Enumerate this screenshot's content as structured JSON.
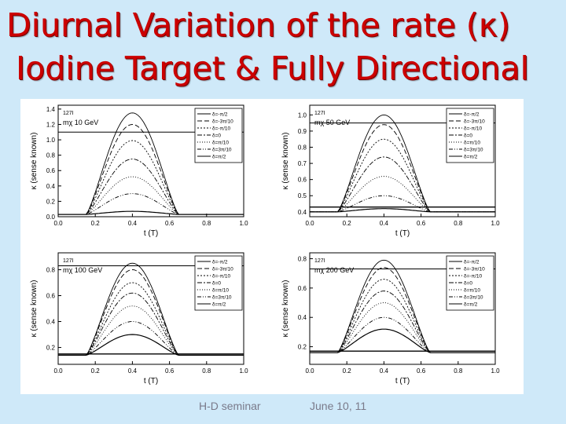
{
  "slide": {
    "title_line1": "Diurnal Variation of the rate (κ)",
    "title_line2": "Iodine Target & Fully Directional",
    "title_color": "#cc0000",
    "background": "#cfe9f9"
  },
  "footer": {
    "left": "H-D seminar",
    "right": "June 10, 11"
  },
  "chart_data": [
    {
      "type": "line",
      "target": "127I",
      "mass_label": "mχ 10 GeV",
      "xlabel": "t (T)",
      "ylabel": "κ (sense known)",
      "xlim": [
        0,
        1
      ],
      "ylim": [
        0,
        1.45
      ],
      "xticks": [
        "0.0",
        "0.2",
        "0.4",
        "0.6",
        "0.8",
        "1.0"
      ],
      "yticks": [
        0.0,
        0.2,
        0.4,
        0.6,
        0.8,
        1.0,
        1.2,
        1.4
      ],
      "ytick_labels": [
        "0.0",
        "0.2",
        "0.4",
        "0.6",
        "0.8",
        "1.0",
        "1.2",
        "1.4"
      ],
      "reference_line": 1.1,
      "legend": [
        "δ=-π/2",
        "δ=-3π/10",
        "δ=-π/10",
        "δ=0",
        "δ=π/10",
        "δ=3π/10",
        "δ=π/2"
      ],
      "series": [
        {
          "peak": 1.35,
          "base": 0.03,
          "dash": ""
        },
        {
          "peak": 1.2,
          "base": 0.03,
          "dash": "6,3"
        },
        {
          "peak": 0.99,
          "base": 0.03,
          "dash": "2,2"
        },
        {
          "peak": 0.75,
          "base": 0.03,
          "dash": "6,2,2,2"
        },
        {
          "peak": 0.52,
          "base": 0.03,
          "dash": "1,2"
        },
        {
          "peak": 0.3,
          "base": 0.03,
          "dash": "5,2,1,2,1,2"
        },
        {
          "peak": 0.07,
          "base": 0.03,
          "dash": ""
        }
      ]
    },
    {
      "type": "line",
      "target": "127I",
      "mass_label": "mχ 50 GeV",
      "xlabel": "t (T)",
      "ylabel": "κ (sense known)",
      "xlim": [
        0,
        1
      ],
      "ylim": [
        0.37,
        1.06
      ],
      "xticks": [
        "0.0",
        "0.2",
        "0.4",
        "0.6",
        "0.8",
        "1.0"
      ],
      "yticks": [
        0.4,
        0.5,
        0.6,
        0.7,
        0.8,
        0.9,
        1.0
      ],
      "ytick_labels": [
        "0.4",
        "0.5",
        "0.6",
        "0.7",
        "0.8",
        "0.9",
        "1.0"
      ],
      "reference_line": 0.95,
      "bottom_line": 0.43,
      "legend": [
        "δ=-π/2",
        "δ=-3π/10",
        "δ=-π/10",
        "δ=0",
        "δ=π/10",
        "δ=3π/10",
        "δ=π/2"
      ],
      "series": [
        {
          "peak": 1.0,
          "base": 0.4,
          "dash": ""
        },
        {
          "peak": 0.94,
          "base": 0.4,
          "dash": "6,3"
        },
        {
          "peak": 0.85,
          "base": 0.4,
          "dash": "2,2"
        },
        {
          "peak": 0.74,
          "base": 0.4,
          "dash": "6,2,2,2"
        },
        {
          "peak": 0.62,
          "base": 0.4,
          "dash": "1,2"
        },
        {
          "peak": 0.5,
          "base": 0.4,
          "dash": "5,2,1,2,1,2"
        },
        {
          "peak": 0.42,
          "base": 0.4,
          "dash": ""
        }
      ]
    },
    {
      "type": "line",
      "target": "127I",
      "mass_label": "mχ 100 GeV",
      "xlabel": "t (T)",
      "ylabel": "κ (sense known)",
      "xlim": [
        0,
        1
      ],
      "ylim": [
        0.07,
        0.93
      ],
      "xticks": [
        "0.0",
        "0.2",
        "0.4",
        "0.6",
        "0.8",
        "1.0"
      ],
      "yticks": [
        0.2,
        0.4,
        0.6,
        0.8
      ],
      "ytick_labels": [
        "0.2",
        "0.4",
        "0.6",
        "0.8"
      ],
      "reference_line": 0.83,
      "bottom_line": 0.15,
      "legend": [
        "δ=-π/2",
        "δ=-3π/10",
        "δ=-π/10",
        "δ=0",
        "δ=π/10",
        "δ=3π/10",
        "δ=π/2"
      ],
      "series": [
        {
          "peak": 0.85,
          "base": 0.14,
          "dash": ""
        },
        {
          "peak": 0.8,
          "base": 0.14,
          "dash": "6,3"
        },
        {
          "peak": 0.7,
          "base": 0.14,
          "dash": "2,2"
        },
        {
          "peak": 0.62,
          "base": 0.14,
          "dash": "6,2,2,2"
        },
        {
          "peak": 0.52,
          "base": 0.14,
          "dash": "1,2"
        },
        {
          "peak": 0.4,
          "base": 0.14,
          "dash": "5,2,1,2,1,2"
        },
        {
          "peak": 0.3,
          "base": 0.14,
          "dash": ""
        }
      ]
    },
    {
      "type": "line",
      "target": "127I",
      "mass_label": "mχ 200 GeV",
      "xlabel": "t (T)",
      "ylabel": "κ (sense known)",
      "xlim": [
        0,
        1
      ],
      "ylim": [
        0.08,
        0.84
      ],
      "xticks": [
        "0.0",
        "0.2",
        "0.4",
        "0.6",
        "0.8",
        "1.0"
      ],
      "yticks": [
        0.2,
        0.4,
        0.6,
        0.8
      ],
      "ytick_labels": [
        "0.2",
        "0.4",
        "0.6",
        "0.8"
      ],
      "reference_line": 0.73,
      "bottom_line": 0.17,
      "legend": [
        "δ=-π/2",
        "δ=-3π/10",
        "δ=-π/10",
        "δ=0",
        "δ=π/10",
        "δ=3π/10",
        "δ=π/2"
      ],
      "series": [
        {
          "peak": 0.79,
          "base": 0.16,
          "dash": ""
        },
        {
          "peak": 0.74,
          "base": 0.16,
          "dash": "6,3"
        },
        {
          "peak": 0.66,
          "base": 0.16,
          "dash": "2,2"
        },
        {
          "peak": 0.58,
          "base": 0.16,
          "dash": "6,2,2,2"
        },
        {
          "peak": 0.5,
          "base": 0.16,
          "dash": "1,2"
        },
        {
          "peak": 0.4,
          "base": 0.16,
          "dash": "5,2,1,2,1,2"
        },
        {
          "peak": 0.32,
          "base": 0.16,
          "dash": ""
        }
      ]
    }
  ]
}
